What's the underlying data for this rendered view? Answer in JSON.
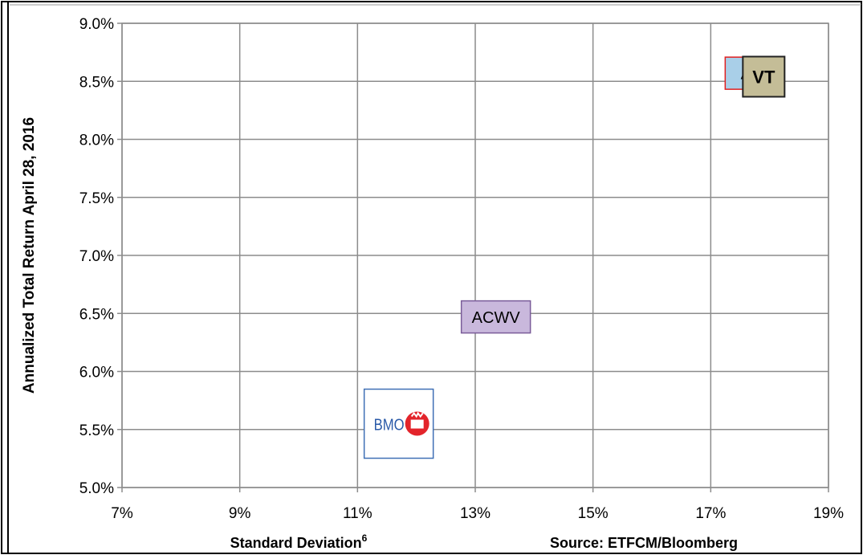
{
  "chart_data": {
    "type": "scatter",
    "title": "",
    "xlabel": "Standard Deviation",
    "xlabel_superscript": "6",
    "ylabel": "Annualized Total Return April 28, 2016",
    "source_note": "Source: ETFCM/Bloomberg",
    "xlim": [
      7,
      19
    ],
    "ylim": [
      5.0,
      9.0
    ],
    "x_ticks": [
      {
        "value": 7,
        "label": "7%"
      },
      {
        "value": 9,
        "label": "9%"
      },
      {
        "value": 11,
        "label": "11%"
      },
      {
        "value": 13,
        "label": "13%"
      },
      {
        "value": 15,
        "label": "15%"
      },
      {
        "value": 17,
        "label": "17%"
      },
      {
        "value": 19,
        "label": "19%"
      }
    ],
    "y_ticks": [
      {
        "value": 5.0,
        "label": "5.0%"
      },
      {
        "value": 5.5,
        "label": "5.5%"
      },
      {
        "value": 6.0,
        "label": "6.0%"
      },
      {
        "value": 6.5,
        "label": "6.5%"
      },
      {
        "value": 7.0,
        "label": "7.0%"
      },
      {
        "value": 7.5,
        "label": "7.5%"
      },
      {
        "value": 8.0,
        "label": "8.0%"
      },
      {
        "value": 8.5,
        "label": "8.5%"
      },
      {
        "value": 9.0,
        "label": "9.0%"
      }
    ],
    "grid": true,
    "points": [
      {
        "label": "A",
        "x": 17.6,
        "y": 8.57,
        "fill": "#a9cfe8",
        "stroke": "#e02020",
        "bold": false
      },
      {
        "label": "VT",
        "x": 17.9,
        "y": 8.54,
        "fill": "#c4bd97",
        "stroke": "#222222",
        "bold": true
      },
      {
        "label": "ACWV",
        "x": 13.35,
        "y": 6.47,
        "fill": "#c9b8dc",
        "stroke": "#7a5c99",
        "bold": false
      },
      {
        "label": "BMO",
        "x": 11.7,
        "y": 5.55,
        "fill": "#ffffff",
        "stroke": "#3f6fb5",
        "logo": true
      }
    ]
  }
}
